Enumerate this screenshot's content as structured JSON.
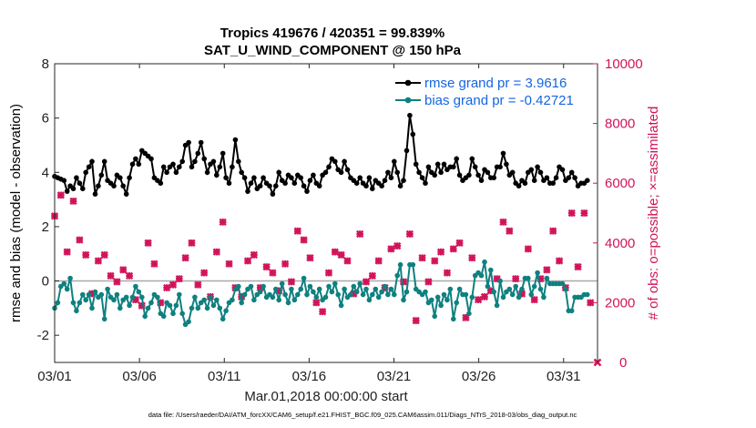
{
  "chart_data": {
    "type": "line",
    "title": "Tropics 419676 / 420351 = 99.839%",
    "subtitle": "SAT_U_WIND_COMPONENT @ 150 hPa",
    "xlabel": "Mar.01,2018 00:00:00 start",
    "ylabel": "rmse and bias (model - observation)",
    "ylabel_right": "# of obs: o=possible; ×=assimilated",
    "xlim": [
      0,
      32
    ],
    "ylim": [
      -3,
      8
    ],
    "ylim_right": [
      0,
      10000
    ],
    "x_ticks": [
      0,
      5,
      10,
      15,
      20,
      25,
      30
    ],
    "x_tick_labels": [
      "03/01",
      "03/06",
      "03/11",
      "03/16",
      "03/21",
      "03/26",
      "03/31"
    ],
    "y_ticks": [
      -2,
      0,
      2,
      4,
      6,
      8
    ],
    "y_tick_labels": [
      "-2",
      "0",
      "2",
      "4",
      "6",
      "8"
    ],
    "y_ticks_right": [
      0,
      2000,
      4000,
      6000,
      8000,
      10000
    ],
    "y_tick_labels_right": [
      "0",
      "2000",
      "4000",
      "6000",
      "8000",
      "10000"
    ],
    "legend_position": "top-right",
    "zero_line": 0,
    "series": [
      {
        "name": "rmse grand pr = 3.9616",
        "color": "#000000",
        "axis": "left",
        "values": [
          3.85,
          3.8,
          3.75,
          3.7,
          3.3,
          3.5,
          3.4,
          3.8,
          3.6,
          3.4,
          4.0,
          4.2,
          4.4,
          3.2,
          3.5,
          3.9,
          4.4,
          3.7,
          3.6,
          3.5,
          3.9,
          3.8,
          3.5,
          3.2,
          3.8,
          4.3,
          4.5,
          4.3,
          4.8,
          4.7,
          4.6,
          4.5,
          3.8,
          3.7,
          3.6,
          4.2,
          4.0,
          4.2,
          4.3,
          4.0,
          4.2,
          4.4,
          5.0,
          5.1,
          4.2,
          4.4,
          4.7,
          5.1,
          4.5,
          4.0,
          4.3,
          4.4,
          3.9,
          4.2,
          4.7,
          3.8,
          3.6,
          4.2,
          5.2,
          4.4,
          4.0,
          3.8,
          3.3,
          3.6,
          3.8,
          3.4,
          3.5,
          3.8,
          3.6,
          3.5,
          3.2,
          3.5,
          4.0,
          3.7,
          3.6,
          3.9,
          3.8,
          3.6,
          3.9,
          3.8,
          3.5,
          3.3,
          3.7,
          3.9,
          3.6,
          3.5,
          3.9,
          4.0,
          4.2,
          4.5,
          4.4,
          4.1,
          4.0,
          4.4,
          4.1,
          3.8,
          3.7,
          3.6,
          3.8,
          3.6,
          3.5,
          3.8,
          3.4,
          3.7,
          3.6,
          3.5,
          3.7,
          4.0,
          3.8,
          4.4,
          4.0,
          3.5,
          3.7,
          4.8,
          6.1,
          5.4,
          4.3,
          4.0,
          3.8,
          3.6,
          4.2,
          4.0,
          3.9,
          4.3,
          4.0,
          4.3,
          4.1,
          4.2,
          4.2,
          4.5,
          3.9,
          3.7,
          3.8,
          3.9,
          4.5,
          4.2,
          3.9,
          3.7,
          4.1,
          4.0,
          3.8,
          3.8,
          4.2,
          4.2,
          4.7,
          4.3,
          3.9,
          4.0,
          3.6,
          3.5,
          3.7,
          3.6,
          4.0,
          4.1,
          3.7,
          4.2,
          4.0,
          3.7,
          3.8,
          3.6,
          3.6,
          3.8,
          4.2,
          4.1,
          3.7,
          3.8,
          4.0,
          3.8,
          3.5,
          3.6,
          3.6,
          3.7
        ],
        "label_x": 0
      },
      {
        "name": "bias grand pr = -0.42721",
        "color": "#0f8080",
        "axis": "left",
        "values": [
          -1.0,
          -0.8,
          -0.2,
          -0.1,
          -0.3,
          0.1,
          -0.8,
          -1.1,
          -0.8,
          -0.5,
          -0.7,
          -0.5,
          -1.0,
          -0.4,
          -0.6,
          -0.5,
          -1.4,
          -0.3,
          -0.6,
          -0.7,
          -0.5,
          -1.0,
          -0.7,
          -0.6,
          -0.9,
          -0.6,
          -0.2,
          -0.4,
          -0.6,
          -1.3,
          -1.0,
          -0.8,
          -0.5,
          -0.6,
          -1.2,
          -1.3,
          -0.8,
          -0.9,
          -1.2,
          -0.9,
          -0.5,
          -1.2,
          -1.6,
          -1.5,
          -1.0,
          -0.6,
          -1.0,
          -0.8,
          -0.7,
          -1.0,
          -0.6,
          -0.9,
          -0.7,
          -1.0,
          -1.4,
          -1.1,
          -0.8,
          -0.7,
          -0.3,
          -0.2,
          -0.8,
          -0.5,
          -0.3,
          -0.2,
          -0.7,
          -0.5,
          -0.4,
          -0.2,
          -0.6,
          -0.5,
          -0.6,
          -0.3,
          -0.7,
          -0.1,
          -0.5,
          -0.8,
          -0.3,
          -0.7,
          -0.5,
          -0.3,
          0.1,
          -0.5,
          -0.2,
          -0.4,
          -0.6,
          -0.3,
          -0.7,
          -0.6,
          -0.2,
          -0.4,
          -0.1,
          -0.5,
          -0.9,
          -0.3,
          -0.6,
          -0.5,
          -0.2,
          -0.4,
          -0.1,
          -0.5,
          -0.3,
          -0.7,
          -0.5,
          -0.3,
          -0.6,
          -0.4,
          -0.2,
          -0.5,
          -0.3,
          -0.5,
          0.2,
          0.6,
          -0.7,
          -0.4,
          0.6,
          0.6,
          -0.3,
          -0.4,
          -0.5,
          -0.4,
          -0.8,
          -0.7,
          -1.3,
          -0.6,
          -0.9,
          -0.5,
          -0.7,
          -0.3,
          -1.4,
          -0.8,
          -0.3,
          -0.5,
          -0.5,
          -1.2,
          -0.6,
          0.2,
          0.3,
          0.2,
          0.7,
          -0.2,
          0.4,
          -0.4,
          -0.9,
          0.0,
          -0.6,
          -0.4,
          -0.3,
          -0.5,
          -0.2,
          -0.6,
          -0.3,
          0.1,
          0.1,
          -0.5,
          -0.2,
          0.3,
          -0.3,
          -0.6,
          0.1,
          -0.1,
          -0.1,
          -0.1,
          -0.1,
          -0.1,
          -0.3,
          -1.1,
          -1.1,
          -0.6,
          -0.6,
          -0.6,
          -0.5,
          -0.5
        ]
      }
    ],
    "obs_assimilated": {
      "name": "obs assimilated",
      "color": "#d1145a",
      "axis": "right",
      "values": [
        4900,
        5300,
        5600,
        3800,
        3700,
        5500,
        5400,
        3900,
        4100,
        4200,
        3600,
        3500,
        2300,
        3200,
        3400,
        3000,
        3600,
        2500,
        2900,
        3100,
        2700,
        1700,
        3100,
        2700,
        2900,
        1700,
        2100,
        2600,
        1900,
        2800,
        4000,
        3900,
        3300,
        3600,
        2000,
        3000,
        2500,
        2100,
        2600,
        2100,
        2800,
        2000,
        3500,
        3800,
        4000,
        4300,
        2600,
        3200,
        3000,
        1700,
        2200,
        2400,
        3700,
        2800,
        4700,
        3900,
        3300,
        3100,
        2500,
        2800,
        2200,
        2000,
        3400,
        3100,
        3600,
        3400,
        2500,
        2800,
        3200,
        4000,
        3000,
        2500,
        2400,
        2400,
        3300,
        2000,
        2700,
        2200,
        4400,
        4400,
        4100,
        3700,
        3500,
        2000,
        2000,
        3100,
        1700,
        3300,
        3000,
        3400,
        3700,
        3800,
        3600,
        4600,
        3400,
        3500,
        2300,
        2700,
        4300,
        3100,
        2700,
        3200,
        2900,
        2300,
        3400,
        3100,
        2500,
        4100,
        3800,
        4000,
        3900,
        3400,
        2700,
        3500,
        4300,
        1700,
        1400,
        1400,
        3500,
        3900,
        2700,
        3000,
        3400,
        2800,
        3700,
        2500,
        3000,
        2800,
        3800,
        2700,
        4000,
        4300,
        1500,
        2600,
        3500,
        2700,
        2100,
        2800,
        2200,
        3800,
        2400,
        3300,
        2800,
        1900,
        4700,
        2100,
        4400,
        2100,
        2800,
        3700,
        2300,
        2500,
        3800,
        3600,
        2100,
        1900,
        2800,
        4000,
        3100,
        2700,
        4400,
        4200,
        3400,
        3100,
        2500,
        4000,
        5000,
        2600,
        3200,
        3600,
        5000,
        4400,
        2000,
        4000
      ]
    },
    "obs_possible_outlier": {
      "x": 32.0,
      "value": 0
    }
  },
  "legend": {
    "rmse_label": "rmse grand pr = 3.9616",
    "bias_label": "bias grand pr = -0.42721"
  },
  "footer": "data file: /Users/raeder/DAI/ATM_forcXX/CAM6_setup/f.e21.FHIST_BGC.f09_025.CAM6assim.011/Diags_NTrS_2018-03/obs_diag_output.nc",
  "colors": {
    "rmse": "#000000",
    "bias": "#0f8080",
    "obs": "#d1145a",
    "legend_text": "#1565e0",
    "zero_line": "#a9a9a9"
  }
}
